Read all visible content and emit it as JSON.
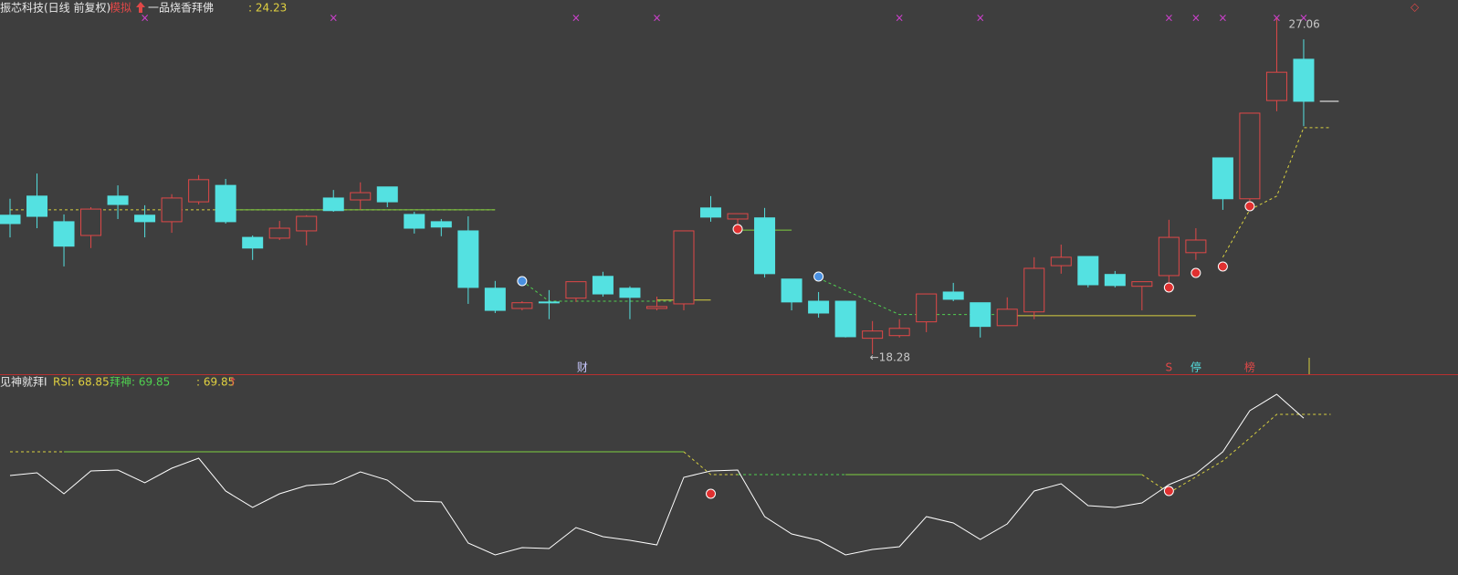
{
  "chart_data": [
    {
      "type": "candlestick",
      "title": "振芯科技(日线 前复权)",
      "mode": "模拟",
      "indicator_name": "一品烧香拜佛",
      "indicator_value": ": 24.23",
      "ylim": [
        17.75,
        27.54
      ],
      "up_color": "#e04848",
      "down_color": "#54e1e1",
      "open": [
        21.91,
        22.41,
        21.74,
        21.38,
        22.41,
        21.91,
        21.74,
        22.26,
        22.69,
        21.33,
        21.31,
        21.5,
        22.36,
        22.31,
        22.65,
        21.93,
        21.74,
        21.5,
        20.0,
        19.47,
        19.64,
        19.74,
        20.31,
        20.0,
        19.47,
        19.59,
        22.1,
        21.81,
        21.84,
        20.24,
        19.66,
        19.66,
        18.69,
        18.76,
        19.12,
        19.9,
        19.62,
        19.02,
        19.38,
        20.59,
        20.83,
        20.36,
        20.05,
        20.33,
        20.93,
        23.41,
        22.34,
        24.91,
        25.99
      ],
      "high": [
        22.34,
        23.0,
        21.93,
        22.12,
        22.69,
        22.17,
        22.46,
        22.96,
        22.86,
        21.38,
        21.76,
        21.91,
        22.57,
        22.77,
        22.65,
        22.0,
        21.81,
        21.88,
        20.19,
        19.66,
        19.95,
        20.17,
        20.43,
        20.05,
        19.78,
        21.5,
        22.41,
        21.95,
        22.1,
        20.24,
        19.9,
        19.66,
        19.14,
        19.19,
        19.85,
        20.14,
        19.62,
        19.76,
        20.81,
        21.14,
        20.83,
        20.45,
        20.17,
        21.79,
        21.57,
        23.41,
        24.58,
        27.06,
        26.51
      ],
      "low": [
        21.33,
        21.57,
        20.57,
        21.05,
        21.81,
        21.33,
        21.45,
        22.19,
        21.69,
        20.74,
        21.26,
        21.12,
        22.0,
        22.05,
        22.12,
        21.43,
        21.36,
        19.59,
        19.35,
        19.42,
        19.19,
        19.64,
        19.78,
        19.19,
        19.42,
        19.42,
        21.74,
        21.45,
        20.28,
        19.42,
        19.23,
        18.71,
        18.28,
        18.71,
        18.85,
        19.66,
        18.71,
        19.02,
        19.19,
        20.38,
        20.02,
        20.02,
        19.42,
        20.14,
        20.74,
        22.05,
        22.17,
        24.63,
        24.24
      ],
      "close": [
        21.69,
        21.88,
        21.1,
        22.07,
        22.19,
        21.74,
        22.36,
        22.84,
        21.74,
        21.05,
        21.57,
        21.88,
        22.03,
        22.5,
        22.26,
        21.57,
        21.6,
        20.02,
        19.42,
        19.62,
        19.62,
        20.17,
        19.85,
        19.76,
        19.52,
        21.5,
        21.86,
        21.95,
        20.38,
        19.64,
        19.35,
        18.73,
        18.88,
        18.95,
        19.85,
        19.71,
        19.0,
        19.45,
        20.52,
        20.81,
        20.09,
        20.07,
        20.17,
        21.33,
        21.26,
        22.34,
        24.58,
        25.65,
        24.89
      ],
      "high_label": 27.06,
      "low_label": "←18.28",
      "lines": [
        {
          "color": "#d8d040",
          "dash": true,
          "x": [
            0,
            18
          ],
          "values": [
            22.05,
            22.05
          ]
        },
        {
          "color": "#7ed040",
          "dash": false,
          "x": [
            8,
            18
          ],
          "values": [
            22.05,
            22.05
          ]
        },
        {
          "color": "#7ed040",
          "dash": false,
          "x": [
            27,
            29
          ],
          "values": [
            21.52,
            21.52
          ]
        },
        {
          "color": "#d8d040",
          "dash": false,
          "x": [
            24,
            26
          ],
          "values": [
            19.69,
            19.69
          ]
        },
        {
          "color": "#d8d040",
          "dash": false,
          "x": [
            37,
            44
          ],
          "values": [
            19.28,
            19.28
          ]
        },
        {
          "color": "#50d050",
          "dash": true,
          "x": [
            19,
            20,
            25
          ],
          "values": [
            20.19,
            19.66,
            19.66
          ]
        },
        {
          "color": "#50d050",
          "dash": true,
          "x": [
            30,
            33,
            37
          ],
          "values": [
            20.26,
            19.31,
            19.31
          ]
        },
        {
          "color": "#d8d040",
          "dash": true,
          "x": [
            45,
            46,
            47,
            48,
            49
          ],
          "values": [
            20.81,
            22.05,
            22.41,
            24.2,
            24.2
          ]
        },
        {
          "color": "#ffffff",
          "dash": false,
          "x": [
            48.6,
            49.3
          ],
          "values": [
            24.89,
            24.89
          ]
        }
      ],
      "markers": [
        "财",
        "S",
        "停",
        "榜"
      ]
    },
    {
      "type": "line",
      "title": "见神就拜I",
      "legend": [
        {
          "text": "RSI: 68.85",
          "color": "#e0d040"
        },
        {
          "text": "拜神: 69.85",
          "color": "#50d050"
        },
        {
          "text": ": 69.85",
          "color": "#e0d040"
        }
      ],
      "ylim": [
        30,
        80
      ],
      "color": "#ffffff",
      "values": [
        53.67,
        54.4,
        48.84,
        54.88,
        55.12,
        51.74,
        55.6,
        58.26,
        49.57,
        45.22,
        48.84,
        51.01,
        51.5,
        54.64,
        52.46,
        46.91,
        46.67,
        35.8,
        32.66,
        34.59,
        34.35,
        39.9,
        37.49,
        36.52,
        35.31,
        53.19,
        54.88,
        55.12,
        42.8,
        38.21,
        36.52,
        32.66,
        34.11,
        34.83,
        42.8,
        41.11,
        36.76,
        40.87,
        49.57,
        51.5,
        45.7,
        45.22,
        46.43,
        51.26,
        54.16,
        59.95,
        70.82,
        75.17,
        68.85
      ],
      "lines": [
        {
          "color": "#d8d040",
          "dash": true,
          "x": [
            0,
            2
          ],
          "values": [
            59.95,
            59.95
          ]
        },
        {
          "color": "#7ed040",
          "dash": false,
          "x": [
            2,
            25
          ],
          "values": [
            59.95,
            59.95
          ]
        },
        {
          "color": "#d8d040",
          "dash": true,
          "x": [
            25,
            26,
            27
          ],
          "values": [
            59.95,
            53.91,
            53.91
          ]
        },
        {
          "color": "#50d050",
          "dash": true,
          "x": [
            27,
            31
          ],
          "values": [
            53.91,
            53.91
          ]
        },
        {
          "color": "#7ed040",
          "dash": false,
          "x": [
            31,
            42
          ],
          "values": [
            53.91,
            53.91
          ]
        },
        {
          "color": "#d8d040",
          "dash": true,
          "x": [
            42,
            43,
            45,
            46,
            47,
            48,
            49
          ],
          "values": [
            53.91,
            49.08,
            57.54,
            63.58,
            69.85,
            69.85,
            69.85
          ]
        }
      ]
    }
  ]
}
